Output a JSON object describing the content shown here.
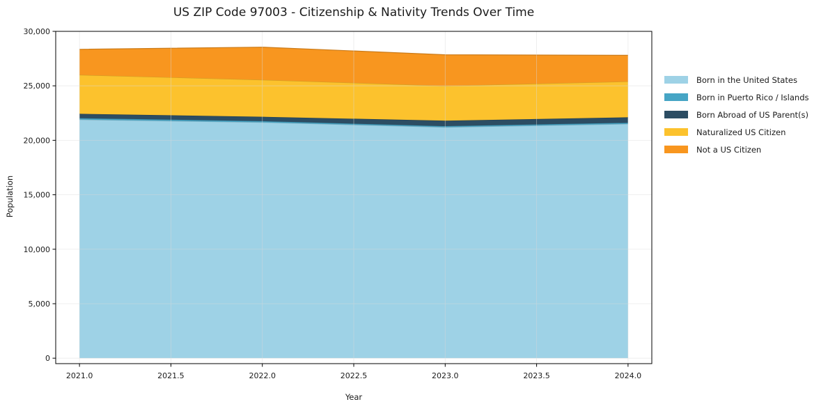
{
  "chart_data": {
    "type": "area",
    "stacked": true,
    "title": "US ZIP Code 97003 - Citizenship & Nativity Trends Over Time",
    "xlabel": "Year",
    "ylabel": "Population",
    "x": [
      2021,
      2022,
      2023,
      2024
    ],
    "series": [
      {
        "name": "Born in the United States",
        "color": "#9ED2E6",
        "values": [
          21900,
          21650,
          21200,
          21500
        ]
      },
      {
        "name": "Born in Puerto Rico / Islands",
        "color": "#46A5C5",
        "values": [
          130,
          110,
          100,
          110
        ]
      },
      {
        "name": "Born Abroad of US Parent(s)",
        "color": "#2C4D63",
        "values": [
          400,
          400,
          500,
          500
        ]
      },
      {
        "name": "Naturalized US Citizen",
        "color": "#FCC22D",
        "values": [
          3570,
          3390,
          3200,
          3290
        ]
      },
      {
        "name": "Not a US Citizen",
        "color": "#F8961F",
        "values": [
          2350,
          3000,
          2850,
          2400
        ]
      }
    ],
    "xlim": [
      2020.87,
      2024.13
    ],
    "ylim": [
      -500,
      30000
    ],
    "x_ticks": {
      "values": [
        2021,
        2021.5,
        2022,
        2022.5,
        2023,
        2023.5,
        2024
      ],
      "labels": [
        "2021.0",
        "2021.5",
        "2022.0",
        "2022.5",
        "2023.0",
        "2023.5",
        "2024.0"
      ]
    },
    "y_ticks": {
      "values": [
        0,
        5000,
        10000,
        15000,
        20000,
        25000,
        30000
      ],
      "labels": [
        "0",
        "5,000",
        "10,000",
        "15,000",
        "20,000",
        "25,000",
        "30,000"
      ]
    },
    "grid": true,
    "grid_color": "#d9d9d9",
    "spine_color": "#000000",
    "text_color": "#1a1a1a",
    "legend_position": "right"
  }
}
